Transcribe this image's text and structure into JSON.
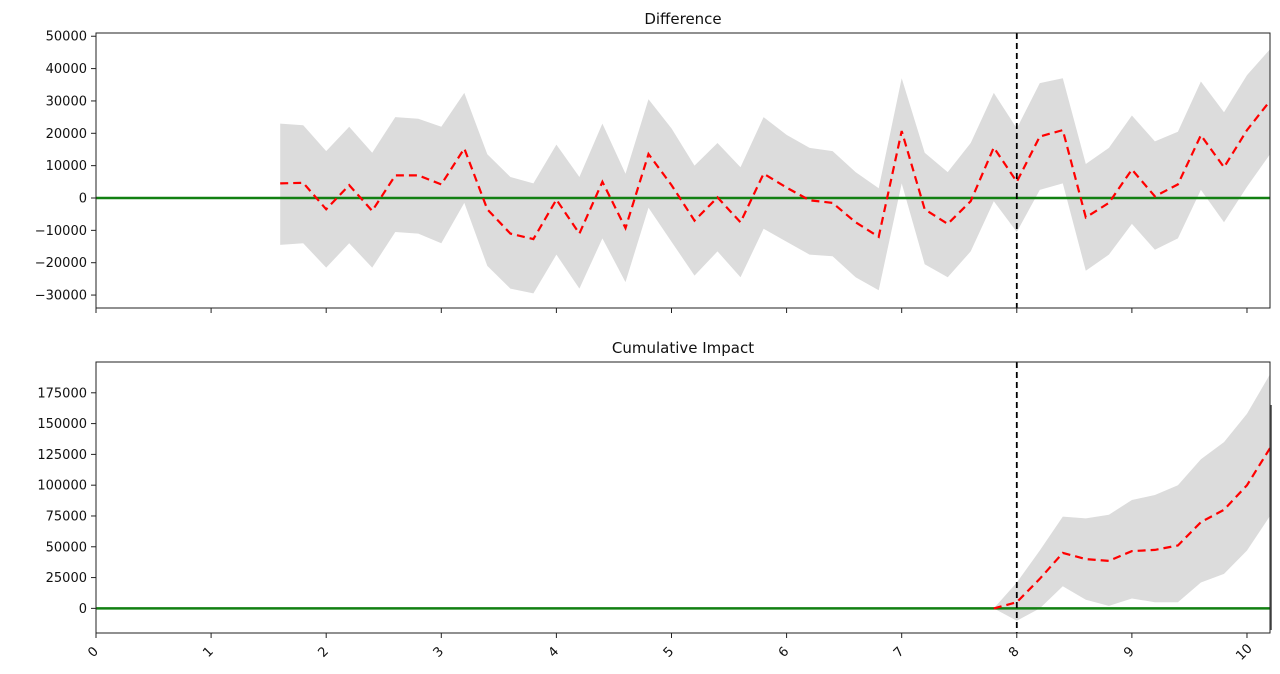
{
  "chart_data": [
    {
      "type": "line",
      "title": "Difference",
      "xlim": [
        0,
        10.2
      ],
      "ylim": [
        -34000,
        51000
      ],
      "yticks": [
        -30000,
        -20000,
        -10000,
        0,
        10000,
        20000,
        30000,
        40000,
        50000
      ],
      "xticks": [
        0,
        1,
        2,
        3,
        4,
        5,
        6,
        7,
        8,
        9,
        10
      ],
      "show_x_tick_labels": false,
      "intervention_x": 8,
      "baseline_y": 0,
      "colors": {
        "mean": "#ff0000",
        "band": "#dcdcdc",
        "baseline": "#128012",
        "intervention": "#000000"
      },
      "x": [
        1.6,
        1.8,
        2.0,
        2.2,
        2.4,
        2.6,
        2.8,
        3.0,
        3.2,
        3.4,
        3.6,
        3.8,
        4.0,
        4.2,
        4.4,
        4.6,
        4.8,
        5.0,
        5.2,
        5.4,
        5.6,
        5.8,
        6.0,
        6.2,
        6.4,
        6.6,
        6.8,
        7.0,
        7.2,
        7.4,
        7.6,
        7.8,
        8.0,
        8.2,
        8.4,
        8.6,
        8.8,
        9.0,
        9.2,
        9.4,
        9.6,
        9.8,
        10.0,
        10.2
      ],
      "mean": [
        4500,
        4700,
        -3500,
        4000,
        -4000,
        7000,
        7000,
        4200,
        15300,
        -3500,
        -11000,
        -12700,
        -500,
        -11000,
        5000,
        -9300,
        13600,
        4000,
        -7000,
        200,
        -7500,
        7500,
        3200,
        -700,
        -1500,
        -7500,
        -12000,
        20700,
        -3500,
        -8000,
        -1000,
        15600,
        5000,
        19000,
        21000,
        -6000,
        -1500,
        8800,
        500,
        4200,
        19400,
        9500,
        21000,
        30000
      ],
      "upper": [
        23000,
        22500,
        14500,
        22000,
        14000,
        25000,
        24500,
        22000,
        32500,
        13500,
        6500,
        4500,
        16500,
        6500,
        23000,
        7500,
        30500,
        21500,
        10000,
        17000,
        9500,
        25000,
        19500,
        15500,
        14500,
        8000,
        3000,
        37000,
        14000,
        8000,
        17000,
        32500,
        21500,
        35500,
        37000,
        10500,
        15500,
        25500,
        17500,
        20500,
        36000,
        26500,
        38000,
        46000
      ],
      "lower": [
        -14500,
        -14000,
        -21500,
        -14000,
        -21500,
        -10500,
        -11000,
        -14000,
        -1500,
        -21000,
        -28000,
        -29500,
        -17500,
        -28000,
        -12500,
        -26000,
        -3000,
        -13500,
        -24000,
        -16500,
        -24500,
        -9500,
        -13500,
        -17500,
        -18000,
        -24500,
        -28500,
        4500,
        -20500,
        -24500,
        -16500,
        -1000,
        -10500,
        2500,
        4500,
        -22500,
        -17500,
        -8000,
        -16000,
        -12500,
        2500,
        -7500,
        3500,
        13500
      ]
    },
    {
      "type": "line",
      "title": "Cumulative Impact",
      "xlim": [
        0,
        10.2
      ],
      "ylim": [
        -20000,
        200000
      ],
      "yticks": [
        0,
        25000,
        50000,
        75000,
        100000,
        125000,
        150000,
        175000
      ],
      "xticks": [
        0,
        1,
        2,
        3,
        4,
        5,
        6,
        7,
        8,
        9,
        10
      ],
      "x_tick_labels": [
        "0",
        "1",
        "2",
        "3",
        "4",
        "5",
        "6",
        "7",
        "8",
        "9",
        "10"
      ],
      "intervention_x": 8,
      "baseline_y": 0,
      "colors": {
        "mean": "#ff0000",
        "band": "#dcdcdc",
        "baseline": "#128012",
        "intervention": "#000000"
      },
      "x": [
        7.8,
        8.0,
        8.2,
        8.4,
        8.6,
        8.8,
        9.0,
        9.2,
        9.4,
        9.6,
        9.8,
        10.0,
        10.2
      ],
      "mean": [
        0,
        5000,
        24000,
        45000,
        40000,
        38500,
        46500,
        47500,
        51000,
        70000,
        80000,
        100000,
        130000
      ],
      "upper": [
        0,
        21000,
        47000,
        74500,
        73000,
        76000,
        88000,
        92000,
        100000,
        121000,
        135000,
        158000,
        190000
      ],
      "lower": [
        0,
        -10000,
        0,
        18000,
        7000,
        2000,
        8000,
        5000,
        5000,
        21000,
        28000,
        47000,
        75000
      ]
    }
  ]
}
